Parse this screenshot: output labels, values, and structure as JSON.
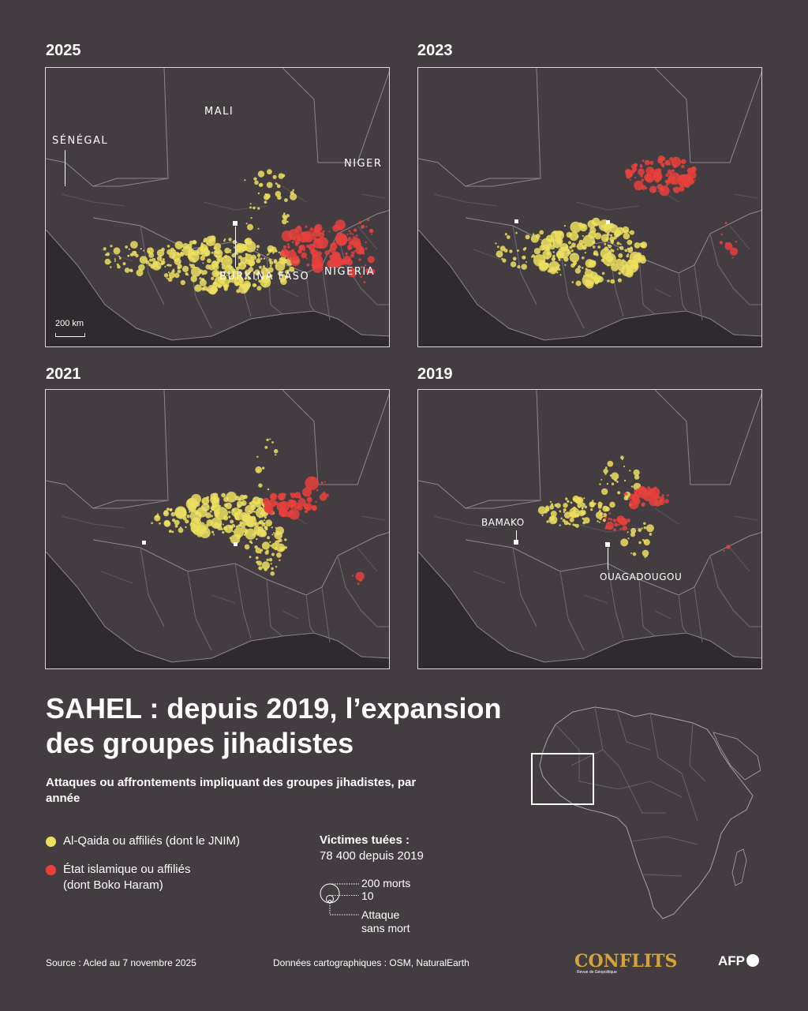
{
  "panels": [
    {
      "year": "2025",
      "labels": [
        "MALI",
        "SÉNÉGAL",
        "NIGER",
        "BURKINA FASO",
        "NIGERIA"
      ],
      "scale": "200 km"
    },
    {
      "year": "2023"
    },
    {
      "year": "2021"
    },
    {
      "year": "2019",
      "labels": [
        "BAMAKO",
        "OUAGADOUGOU"
      ]
    }
  ],
  "title_line1": "SAHEL : depuis 2019, l’expansion",
  "title_line2": "des groupes jihadistes",
  "subtitle": "Attaques ou affrontements impliquant des groupes jihadistes, par année",
  "legend": {
    "alqaida": "Al-Qaida ou affiliés (dont le JNIM)",
    "ei_line1": "État islamique ou affiliés",
    "ei_line2": "(dont Boko Haram)"
  },
  "victims": {
    "title": "Victimes tuées :",
    "total": "78 400 depuis 2019",
    "size_200": "200 morts",
    "size_10": "10",
    "no_death_line1": "Attaque",
    "no_death_line2": "sans mort"
  },
  "footer": {
    "source": "Source : Acled au 7 novembre 2025",
    "data": "Données cartographiques : OSM, NaturalEarth",
    "conflits": "CONFLITS",
    "conflits_sub": "Revue de Géopolitique",
    "afp": "AFP"
  },
  "colors": {
    "background": "#433d42",
    "alqaida": "#ecdf5f",
    "ei": "#e8413c",
    "coast": "#2e2a2e",
    "border": "#6f6a6f"
  }
}
